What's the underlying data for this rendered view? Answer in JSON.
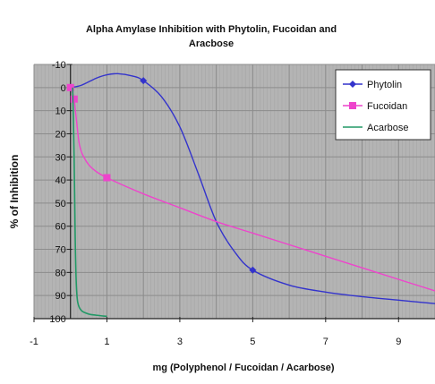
{
  "chart_data": {
    "type": "line",
    "title": "Alpha Amylase Inhibition with Phytolin, Fucoidan and Aracbose",
    "title_lines": [
      "Alpha Amylase Inhibition with Phytolin, Fucoidan and",
      "Aracbose"
    ],
    "xlabel": "mg (Polyphenol / Fucoidan / Acarbose)",
    "ylabel": "% of Inhibition",
    "xlim": [
      -1,
      10
    ],
    "ylim": [
      -10,
      100
    ],
    "y_inverted": true,
    "x_ticks": [
      -1,
      1,
      3,
      5,
      7,
      9
    ],
    "y_ticks": [
      -10,
      0,
      10,
      20,
      30,
      40,
      50,
      60,
      70,
      80,
      90,
      100
    ],
    "grid": true,
    "plot_background": "#b4b4b4",
    "legend_position": "top-right",
    "series": [
      {
        "name": "Phytolin",
        "color": "#3333cc",
        "marker": "diamond",
        "x": [
          0,
          0.3,
          0.7,
          1.0,
          1.3,
          1.7,
          2.0,
          2.5,
          3.0,
          3.5,
          4.0,
          4.5,
          5.0,
          6.0,
          7.0,
          8.0,
          9.0,
          10.0
        ],
        "y": [
          0,
          -1,
          -4,
          -5.5,
          -6,
          -5,
          -3,
          4,
          17,
          37,
          58,
          71,
          79,
          85.5,
          88.5,
          90.5,
          92,
          93.5
        ],
        "markers_at": [
          0,
          2,
          5
        ]
      },
      {
        "name": "Fucoidan",
        "color": "#ee44cc",
        "marker": "square",
        "x": [
          0,
          0.05,
          0.1,
          0.15,
          0.25,
          0.4,
          0.6,
          1.0,
          2.0,
          3.0,
          4.0,
          5.0,
          6.0,
          7.0,
          8.0,
          9.0,
          10.0
        ],
        "y": [
          0,
          2,
          5,
          12,
          25,
          31,
          35,
          39,
          46,
          52,
          58,
          63,
          68,
          73,
          78,
          83,
          88
        ],
        "markers_at": [
          0,
          0.1,
          1
        ]
      },
      {
        "name": "Acarbose",
        "color": "#229966",
        "marker": "none",
        "x": [
          0.06,
          0.1,
          0.13,
          0.16,
          0.2,
          0.3,
          0.5,
          0.7,
          1.0
        ],
        "y": [
          0,
          30,
          65,
          85,
          93,
          96.5,
          98,
          98.5,
          99
        ]
      }
    ]
  }
}
